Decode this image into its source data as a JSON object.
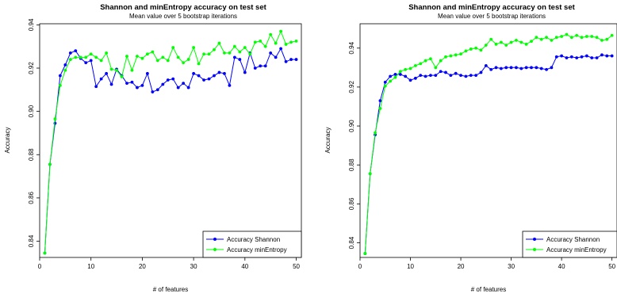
{
  "chart_data": [
    {
      "type": "line",
      "title": "Shannon and minEntropy accuracy on test set",
      "subtitle": "Mean value over 5 bootstrap iterations",
      "xlabel": "# of features",
      "ylabel": "Accuracy",
      "xlim": [
        0,
        51
      ],
      "ylim": [
        0.8325,
        0.9405
      ],
      "xticks": [
        "0",
        "10",
        "20",
        "30",
        "40",
        "50"
      ],
      "yticks": [
        "0.84",
        "0.86",
        "0.88",
        "0.90",
        "0.92",
        "0.94"
      ],
      "legend_position": "bottom-right",
      "grid": false,
      "x": [
        1,
        2,
        3,
        4,
        5,
        6,
        7,
        8,
        9,
        10,
        11,
        12,
        13,
        14,
        15,
        16,
        17,
        18,
        19,
        20,
        21,
        22,
        23,
        24,
        25,
        26,
        27,
        28,
        29,
        30,
        31,
        32,
        33,
        34,
        35,
        36,
        37,
        38,
        39,
        40,
        41,
        42,
        43,
        44,
        45,
        46,
        47,
        48,
        49,
        50
      ],
      "series": [
        {
          "name": "Accuracy Shannon",
          "color": "#0000ff",
          "values": [
            0.8345,
            0.8755,
            0.8945,
            0.9165,
            0.9215,
            0.927,
            0.928,
            0.9245,
            0.9225,
            0.9235,
            0.9115,
            0.915,
            0.9175,
            0.9125,
            0.9195,
            0.9165,
            0.913,
            0.9135,
            0.911,
            0.912,
            0.9175,
            0.909,
            0.91,
            0.9125,
            0.9145,
            0.915,
            0.911,
            0.913,
            0.911,
            0.9175,
            0.9165,
            0.9145,
            0.915,
            0.9165,
            0.918,
            0.9175,
            0.912,
            0.925,
            0.924,
            0.918,
            0.927,
            0.92,
            0.921,
            0.921,
            0.927,
            0.925,
            0.929,
            0.923,
            0.924,
            0.924
          ]
        },
        {
          "name": "Accuracy minEntropy",
          "color": "#00ff00",
          "values": [
            0.8345,
            0.8755,
            0.8965,
            0.912,
            0.919,
            0.924,
            0.925,
            0.925,
            0.925,
            0.9265,
            0.925,
            0.9235,
            0.927,
            0.9195,
            0.919,
            0.916,
            0.9255,
            0.919,
            0.9255,
            0.9245,
            0.9265,
            0.9275,
            0.9235,
            0.925,
            0.9235,
            0.9295,
            0.925,
            0.9225,
            0.924,
            0.9295,
            0.922,
            0.9265,
            0.9265,
            0.9285,
            0.9315,
            0.927,
            0.927,
            0.93,
            0.9275,
            0.9295,
            0.9265,
            0.932,
            0.9325,
            0.93,
            0.9355,
            0.9315,
            0.937,
            0.931,
            0.932,
            0.9325
          ]
        }
      ]
    },
    {
      "type": "line",
      "title": "Shannon and minEntropy accuracy on test set",
      "subtitle": "Mean value over 5 bootstrap iterations",
      "xlabel": "# of features",
      "ylabel": "Accuracy",
      "xlim": [
        0,
        51
      ],
      "ylim": [
        0.8325,
        0.9525
      ],
      "xticks": [
        "0",
        "10",
        "20",
        "30",
        "40",
        "50"
      ],
      "yticks": [
        "0.84",
        "0.86",
        "0.88",
        "0.90",
        "0.92",
        "0.94"
      ],
      "legend_position": "bottom-right",
      "grid": false,
      "x": [
        1,
        2,
        3,
        4,
        5,
        6,
        7,
        8,
        9,
        10,
        11,
        12,
        13,
        14,
        15,
        16,
        17,
        18,
        19,
        20,
        21,
        22,
        23,
        24,
        25,
        26,
        27,
        28,
        29,
        30,
        31,
        32,
        33,
        34,
        35,
        36,
        37,
        38,
        39,
        40,
        41,
        42,
        43,
        44,
        45,
        46,
        47,
        48,
        49,
        50
      ],
      "series": [
        {
          "name": "Accuracy Shannon",
          "color": "#0000ff",
          "values": [
            0.8345,
            0.8755,
            0.8955,
            0.913,
            0.9225,
            0.9255,
            0.9265,
            0.9265,
            0.9255,
            0.9235,
            0.9245,
            0.926,
            0.9255,
            0.926,
            0.926,
            0.928,
            0.9275,
            0.926,
            0.927,
            0.926,
            0.9255,
            0.926,
            0.926,
            0.9275,
            0.931,
            0.929,
            0.93,
            0.9295,
            0.93,
            0.93,
            0.93,
            0.9295,
            0.93,
            0.93,
            0.93,
            0.9295,
            0.929,
            0.93,
            0.9355,
            0.936,
            0.935,
            0.9355,
            0.935,
            0.9355,
            0.936,
            0.935,
            0.935,
            0.9365,
            0.936,
            0.936
          ]
        },
        {
          "name": "Accuracy minEntropy",
          "color": "#00ff00",
          "values": [
            0.8345,
            0.8755,
            0.8965,
            0.909,
            0.9205,
            0.923,
            0.925,
            0.928,
            0.929,
            0.9295,
            0.931,
            0.932,
            0.9335,
            0.9345,
            0.93,
            0.9335,
            0.9355,
            0.936,
            0.9365,
            0.937,
            0.9385,
            0.9395,
            0.94,
            0.939,
            0.9415,
            0.9445,
            0.942,
            0.943,
            0.9415,
            0.943,
            0.944,
            0.943,
            0.942,
            0.9435,
            0.9455,
            0.9445,
            0.9455,
            0.944,
            0.9455,
            0.946,
            0.947,
            0.9455,
            0.9465,
            0.9455,
            0.946,
            0.946,
            0.9455,
            0.944,
            0.9445,
            0.9465
          ]
        }
      ]
    }
  ]
}
